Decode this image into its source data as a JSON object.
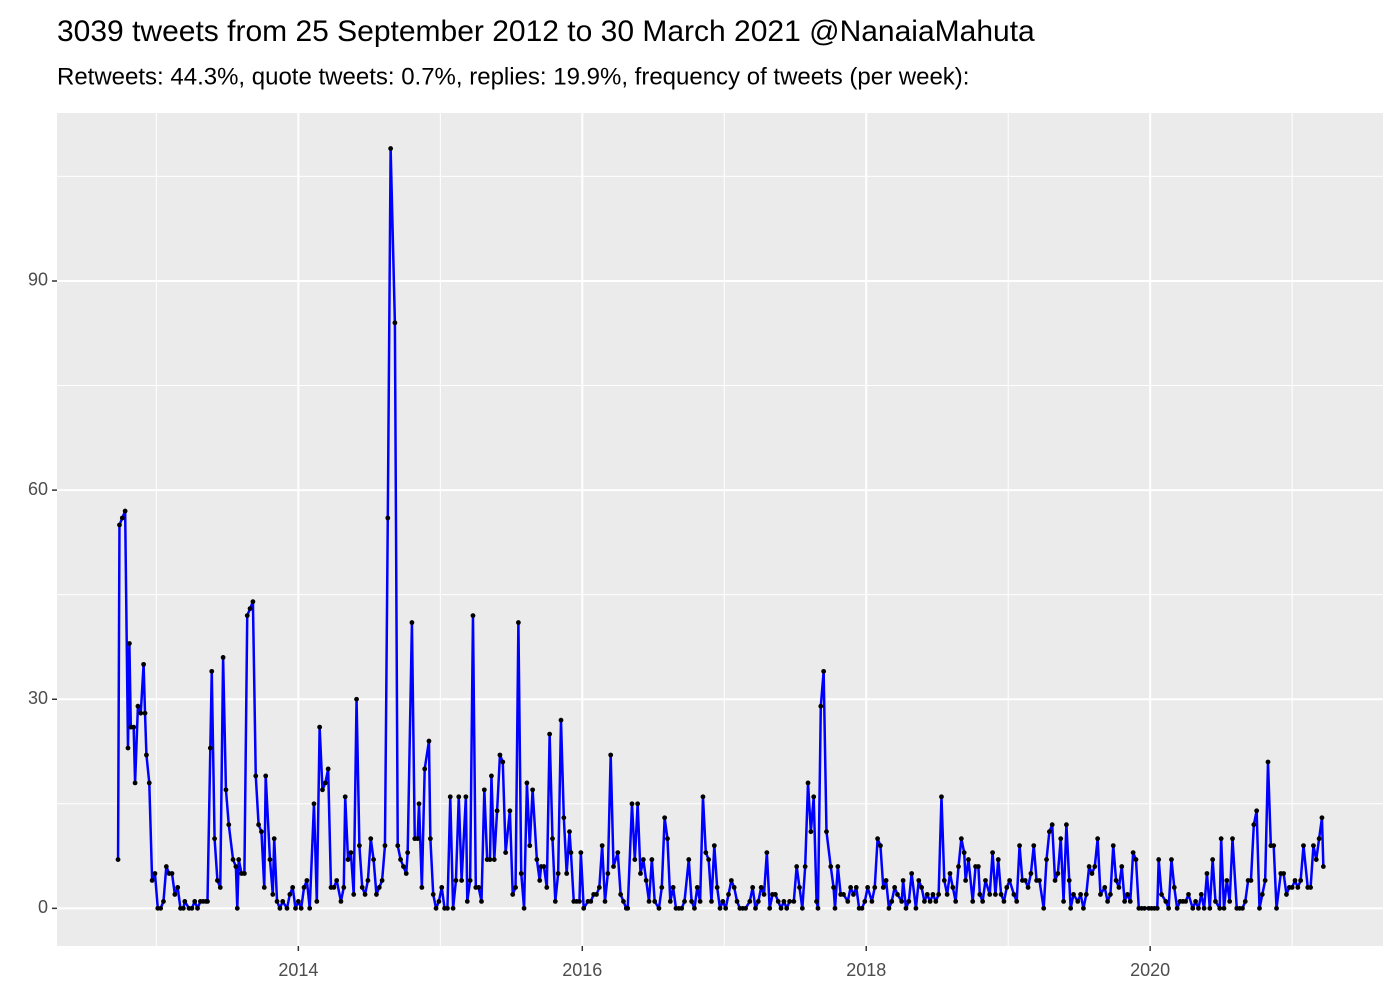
{
  "chart_data": {
    "type": "line",
    "title": "3039 tweets from 25 September 2012 to 30 March 2021 @NanaiaMahuta",
    "subtitle": "Retweets: 44.3%, quote tweets: 0.7%, replies: 19.9%, frequency of tweets (per week):",
    "color": "#0000ff",
    "marker_color": "#000000",
    "background": "#ebebeb",
    "grid": true,
    "xlim": [
      2012.3,
      2021.64
    ],
    "ylim": [
      -5.4,
      114.1
    ],
    "xticks": [
      2014,
      2016,
      2018,
      2020
    ],
    "yticks": [
      0,
      30,
      60,
      90
    ],
    "x_minor_ticks": [
      2013,
      2015,
      2017,
      2019,
      2021
    ],
    "y_minor_ticks": [
      15,
      45,
      75,
      105
    ],
    "x": [
      2012.73,
      2012.74,
      2012.76,
      2012.78,
      2012.8,
      2012.81,
      2012.82,
      2012.84,
      2012.85,
      2012.87,
      2012.89,
      2012.91,
      2012.92,
      2012.93,
      2012.95,
      2012.97,
      2012.99,
      2013.01,
      2013.03,
      2013.05,
      2013.07,
      2013.09,
      2013.11,
      2013.13,
      2013.15,
      2013.17,
      2013.19,
      2013.2,
      2013.23,
      2013.25,
      2013.27,
      2013.29,
      2013.31,
      2013.33,
      2013.35,
      2013.36,
      2013.38,
      2013.39,
      2013.41,
      2013.43,
      2013.45,
      2013.47,
      2013.49,
      2013.51,
      2013.54,
      2013.56,
      2013.57,
      2013.58,
      2013.6,
      2013.62,
      2013.64,
      2013.66,
      2013.68,
      2013.7,
      2013.72,
      2013.74,
      2013.76,
      2013.77,
      2013.8,
      2013.82,
      2013.83,
      2013.85,
      2013.87,
      2013.89,
      2013.92,
      2013.94,
      2013.96,
      2013.98,
      2014.0,
      2014.02,
      2014.04,
      2014.06,
      2014.08,
      2014.11,
      2014.13,
      2014.15,
      2014.17,
      2014.19,
      2014.21,
      2014.23,
      2014.25,
      2014.27,
      2014.3,
      2014.32,
      2014.33,
      2014.35,
      2014.37,
      2014.39,
      2014.41,
      2014.43,
      2014.45,
      2014.47,
      2014.49,
      2014.51,
      2014.53,
      2014.55,
      2014.57,
      2014.59,
      2014.61,
      2014.63,
      2014.65,
      2014.68,
      2014.7,
      2014.72,
      2014.74,
      2014.76,
      2014.77,
      2014.8,
      2014.82,
      2014.84,
      2014.85,
      2014.87,
      2014.89,
      2014.92,
      2014.93,
      2014.95,
      2014.97,
      2014.99,
      2015.01,
      2015.03,
      2015.05,
      2015.07,
      2015.09,
      2015.11,
      2015.13,
      2015.15,
      2015.18,
      2015.19,
      2015.21,
      2015.23,
      2015.25,
      2015.27,
      2015.29,
      2015.31,
      2015.33,
      2015.35,
      2015.36,
      2015.38,
      2015.4,
      2015.42,
      2015.44,
      2015.46,
      2015.49,
      2015.51,
      2015.53,
      2015.55,
      2015.57,
      2015.59,
      2015.61,
      2015.63,
      2015.65,
      2015.68,
      2015.7,
      2015.71,
      2015.73,
      2015.75,
      2015.77,
      2015.79,
      2015.81,
      2015.83,
      2015.85,
      2015.87,
      2015.89,
      2015.91,
      2015.92,
      2015.94,
      2015.96,
      2015.98,
      2015.99,
      2016.01,
      2016.04,
      2016.06,
      2016.08,
      2016.1,
      2016.12,
      2016.14,
      2016.16,
      2016.18,
      2016.2,
      2016.22,
      2016.25,
      2016.27,
      2016.29,
      2016.31,
      2016.32,
      2016.35,
      2016.37,
      2016.39,
      2016.41,
      2016.43,
      2016.45,
      2016.47,
      2016.49,
      2016.51,
      2016.54,
      2016.56,
      2016.58,
      2016.6,
      2016.62,
      2016.64,
      2016.66,
      2016.68,
      2016.7,
      2016.72,
      2016.75,
      2016.77,
      2016.79,
      2016.81,
      2016.83,
      2016.85,
      2016.87,
      2016.89,
      2016.91,
      2016.93,
      2016.95,
      2016.97,
      2016.99,
      2017.01,
      2017.03,
      2017.05,
      2017.07,
      2017.09,
      2017.11,
      2017.13,
      2017.15,
      2017.18,
      2017.2,
      2017.22,
      2017.24,
      2017.26,
      2017.28,
      2017.3,
      2017.32,
      2017.34,
      2017.36,
      2017.38,
      2017.4,
      2017.42,
      2017.44,
      2017.46,
      2017.49,
      2017.51,
      2017.53,
      2017.55,
      2017.57,
      2017.59,
      2017.61,
      2017.63,
      2017.65,
      2017.66,
      2017.68,
      2017.7,
      2017.72,
      2017.75,
      2017.77,
      2017.78,
      2017.8,
      2017.82,
      2017.84,
      2017.87,
      2017.89,
      2017.91,
      2017.93,
      2017.95,
      2017.97,
      2017.99,
      2018.01,
      2018.04,
      2018.06,
      2018.08,
      2018.1,
      2018.12,
      2018.14,
      2018.16,
      2018.18,
      2018.2,
      2018.22,
      2018.25,
      2018.26,
      2018.28,
      2018.3,
      2018.32,
      2018.35,
      2018.37,
      2018.39,
      2018.41,
      2018.43,
      2018.45,
      2018.47,
      2018.49,
      2018.51,
      2018.53,
      2018.55,
      2018.57,
      2018.59,
      2018.61,
      2018.63,
      2018.65,
      2018.67,
      2018.69,
      2018.7,
      2018.72,
      2018.75,
      2018.77,
      2018.79,
      2018.8,
      2018.82,
      2018.84,
      2018.87,
      2018.89,
      2018.91,
      2018.93,
      2018.95,
      2018.97,
      2018.99,
      2019.01,
      2019.04,
      2019.06,
      2019.08,
      2019.1,
      2019.12,
      2019.14,
      2019.16,
      2019.18,
      2019.2,
      2019.22,
      2019.25,
      2019.27,
      2019.29,
      2019.31,
      2019.33,
      2019.35,
      2019.37,
      2019.39,
      2019.41,
      2019.43,
      2019.44,
      2019.46,
      2019.49,
      2019.51,
      2019.53,
      2019.55,
      2019.57,
      2019.59,
      2019.61,
      2019.63,
      2019.65,
      2019.68,
      2019.7,
      2019.72,
      2019.74,
      2019.76,
      2019.78,
      2019.8,
      2019.82,
      2019.84,
      2019.86,
      2019.88,
      2019.9,
      2019.92,
      2019.94,
      2019.96,
      2019.99,
      2020.01,
      2020.03,
      2020.05,
      2020.06,
      2020.08,
      2020.11,
      2020.13,
      2020.15,
      2020.17,
      2020.19,
      2020.21,
      2020.23,
      2020.25,
      2020.27,
      2020.3,
      2020.32,
      2020.34,
      2020.36,
      2020.38,
      2020.4,
      2020.42,
      2020.44,
      2020.46,
      2020.49,
      2020.5,
      2020.52,
      2020.54,
      2020.56,
      2020.58,
      2020.61,
      2020.63,
      2020.65,
      2020.67,
      2020.69,
      2020.71,
      2020.73,
      2020.75,
      2020.77,
      2020.79,
      2020.81,
      2020.83,
      2020.85,
      2020.87,
      2020.89,
      2020.92,
      2020.94,
      2020.96,
      2020.98,
      2021.0,
      2021.02,
      2021.04,
      2021.06,
      2021.08,
      2021.11,
      2021.13,
      2021.15,
      2021.17,
      2021.19,
      2021.21,
      2021.22
    ],
    "values": [
      7,
      55,
      56,
      57,
      23,
      38,
      26,
      26,
      18,
      29,
      28,
      35,
      28,
      22,
      18,
      4,
      5,
      0,
      0,
      1,
      6,
      5,
      5,
      2,
      3,
      0,
      0,
      1,
      0,
      0,
      1,
      0,
      1,
      1,
      1,
      1,
      23,
      34,
      10,
      4,
      3,
      36,
      17,
      12,
      7,
      6,
      0,
      7,
      5,
      5,
      42,
      43,
      44,
      19,
      12,
      11,
      3,
      19,
      7,
      2,
      10,
      1,
      0,
      1,
      0,
      2,
      3,
      0,
      1,
      0,
      3,
      4,
      0,
      15,
      1,
      26,
      17,
      18,
      20,
      3,
      3,
      4,
      1,
      3,
      16,
      7,
      8,
      2,
      30,
      9,
      3,
      2,
      4,
      10,
      7,
      2,
      3,
      4,
      9,
      56,
      109,
      84,
      9,
      7,
      6,
      5,
      8,
      41,
      10,
      10,
      15,
      3,
      20,
      24,
      10,
      2,
      0,
      1,
      3,
      0,
      0,
      16,
      0,
      4,
      16,
      4,
      16,
      1,
      4,
      42,
      3,
      3,
      1,
      17,
      7,
      7,
      19,
      7,
      14,
      22,
      21,
      8,
      14,
      2,
      3,
      41,
      5,
      0,
      18,
      9,
      17,
      7,
      4,
      6,
      6,
      3,
      25,
      10,
      1,
      5,
      27,
      13,
      5,
      11,
      8,
      1,
      1,
      1,
      8,
      0,
      1,
      1,
      2,
      2,
      3,
      9,
      1,
      5,
      22,
      6,
      8,
      2,
      1,
      0,
      0,
      15,
      7,
      15,
      5,
      7,
      4,
      1,
      7,
      1,
      0,
      3,
      13,
      10,
      1,
      3,
      0,
      0,
      0,
      1,
      7,
      1,
      0,
      3,
      1,
      16,
      8,
      7,
      1,
      9,
      3,
      0,
      1,
      0,
      2,
      4,
      3,
      1,
      0,
      0,
      0,
      1,
      3,
      0,
      1,
      3,
      2,
      8,
      0,
      2,
      2,
      1,
      0,
      1,
      0,
      1,
      1,
      6,
      3,
      0,
      6,
      18,
      11,
      16,
      1,
      0,
      29,
      34,
      11,
      6,
      3,
      0,
      6,
      2,
      2,
      1,
      3,
      2,
      3,
      0,
      0,
      1,
      3,
      1,
      3,
      10,
      9,
      3,
      4,
      0,
      1,
      3,
      2,
      1,
      4,
      0,
      1,
      5,
      0,
      4,
      3,
      1,
      2,
      1,
      2,
      1,
      2,
      16,
      4,
      2,
      5,
      3,
      1,
      6,
      10,
      8,
      4,
      7,
      1,
      6,
      6,
      2,
      1,
      4,
      2,
      8,
      2,
      7,
      2,
      1,
      3,
      4,
      2,
      1,
      9,
      4,
      4,
      3,
      5,
      9,
      4,
      4,
      0,
      7,
      11,
      12,
      4,
      5,
      10,
      1,
      12,
      4,
      0,
      2,
      1,
      2,
      0,
      2,
      6,
      5,
      6,
      10,
      2,
      3,
      1,
      2,
      9,
      4,
      3,
      6,
      1,
      2,
      1,
      8,
      7,
      0,
      0,
      0,
      0,
      0,
      0,
      0,
      7,
      2,
      1,
      0,
      7,
      3,
      0,
      1,
      1,
      1,
      2,
      0,
      1,
      0,
      2,
      0,
      5,
      0,
      7,
      1,
      0,
      10,
      0,
      4,
      1,
      10,
      0,
      0,
      0,
      1,
      4,
      4,
      12,
      14,
      0,
      2,
      4,
      21,
      9,
      9,
      0,
      5,
      5,
      2,
      3,
      3,
      4,
      3,
      4,
      9,
      3,
      3,
      9,
      7,
      10,
      13,
      6
    ]
  }
}
